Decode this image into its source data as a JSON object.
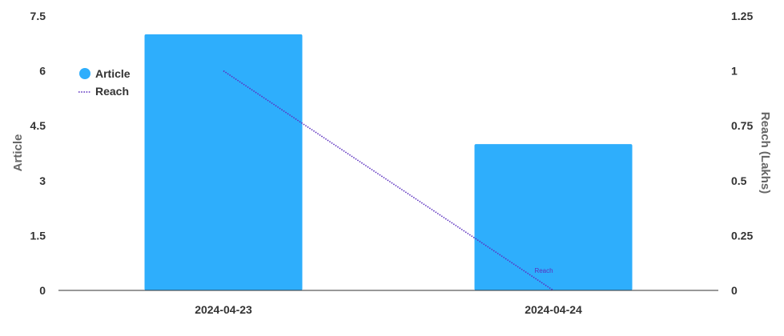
{
  "chart_data": {
    "type": "bar",
    "categories": [
      "2024-04-23",
      "2024-04-24"
    ],
    "series": [
      {
        "name": "Article",
        "type": "bar",
        "axis": "left",
        "values": [
          7,
          4
        ],
        "color": "#2eaefc"
      },
      {
        "name": "Reach",
        "type": "line",
        "axis": "right",
        "style": "dotted",
        "values": [
          1,
          0
        ],
        "color": "#5b2fbf",
        "point_label": "Reach"
      }
    ],
    "ylabel": "Article",
    "y2label": "Reach (Lakhs)",
    "ylim": [
      0,
      7.5
    ],
    "y2lim": [
      0,
      1.25
    ],
    "yticks": [
      "0",
      "1.5",
      "3",
      "4.5",
      "6",
      "7.5"
    ],
    "y2ticks": [
      "0",
      "0.25",
      "0.5",
      "0.75",
      "1",
      "1.25"
    ],
    "legend": "top-left",
    "grid": false
  }
}
